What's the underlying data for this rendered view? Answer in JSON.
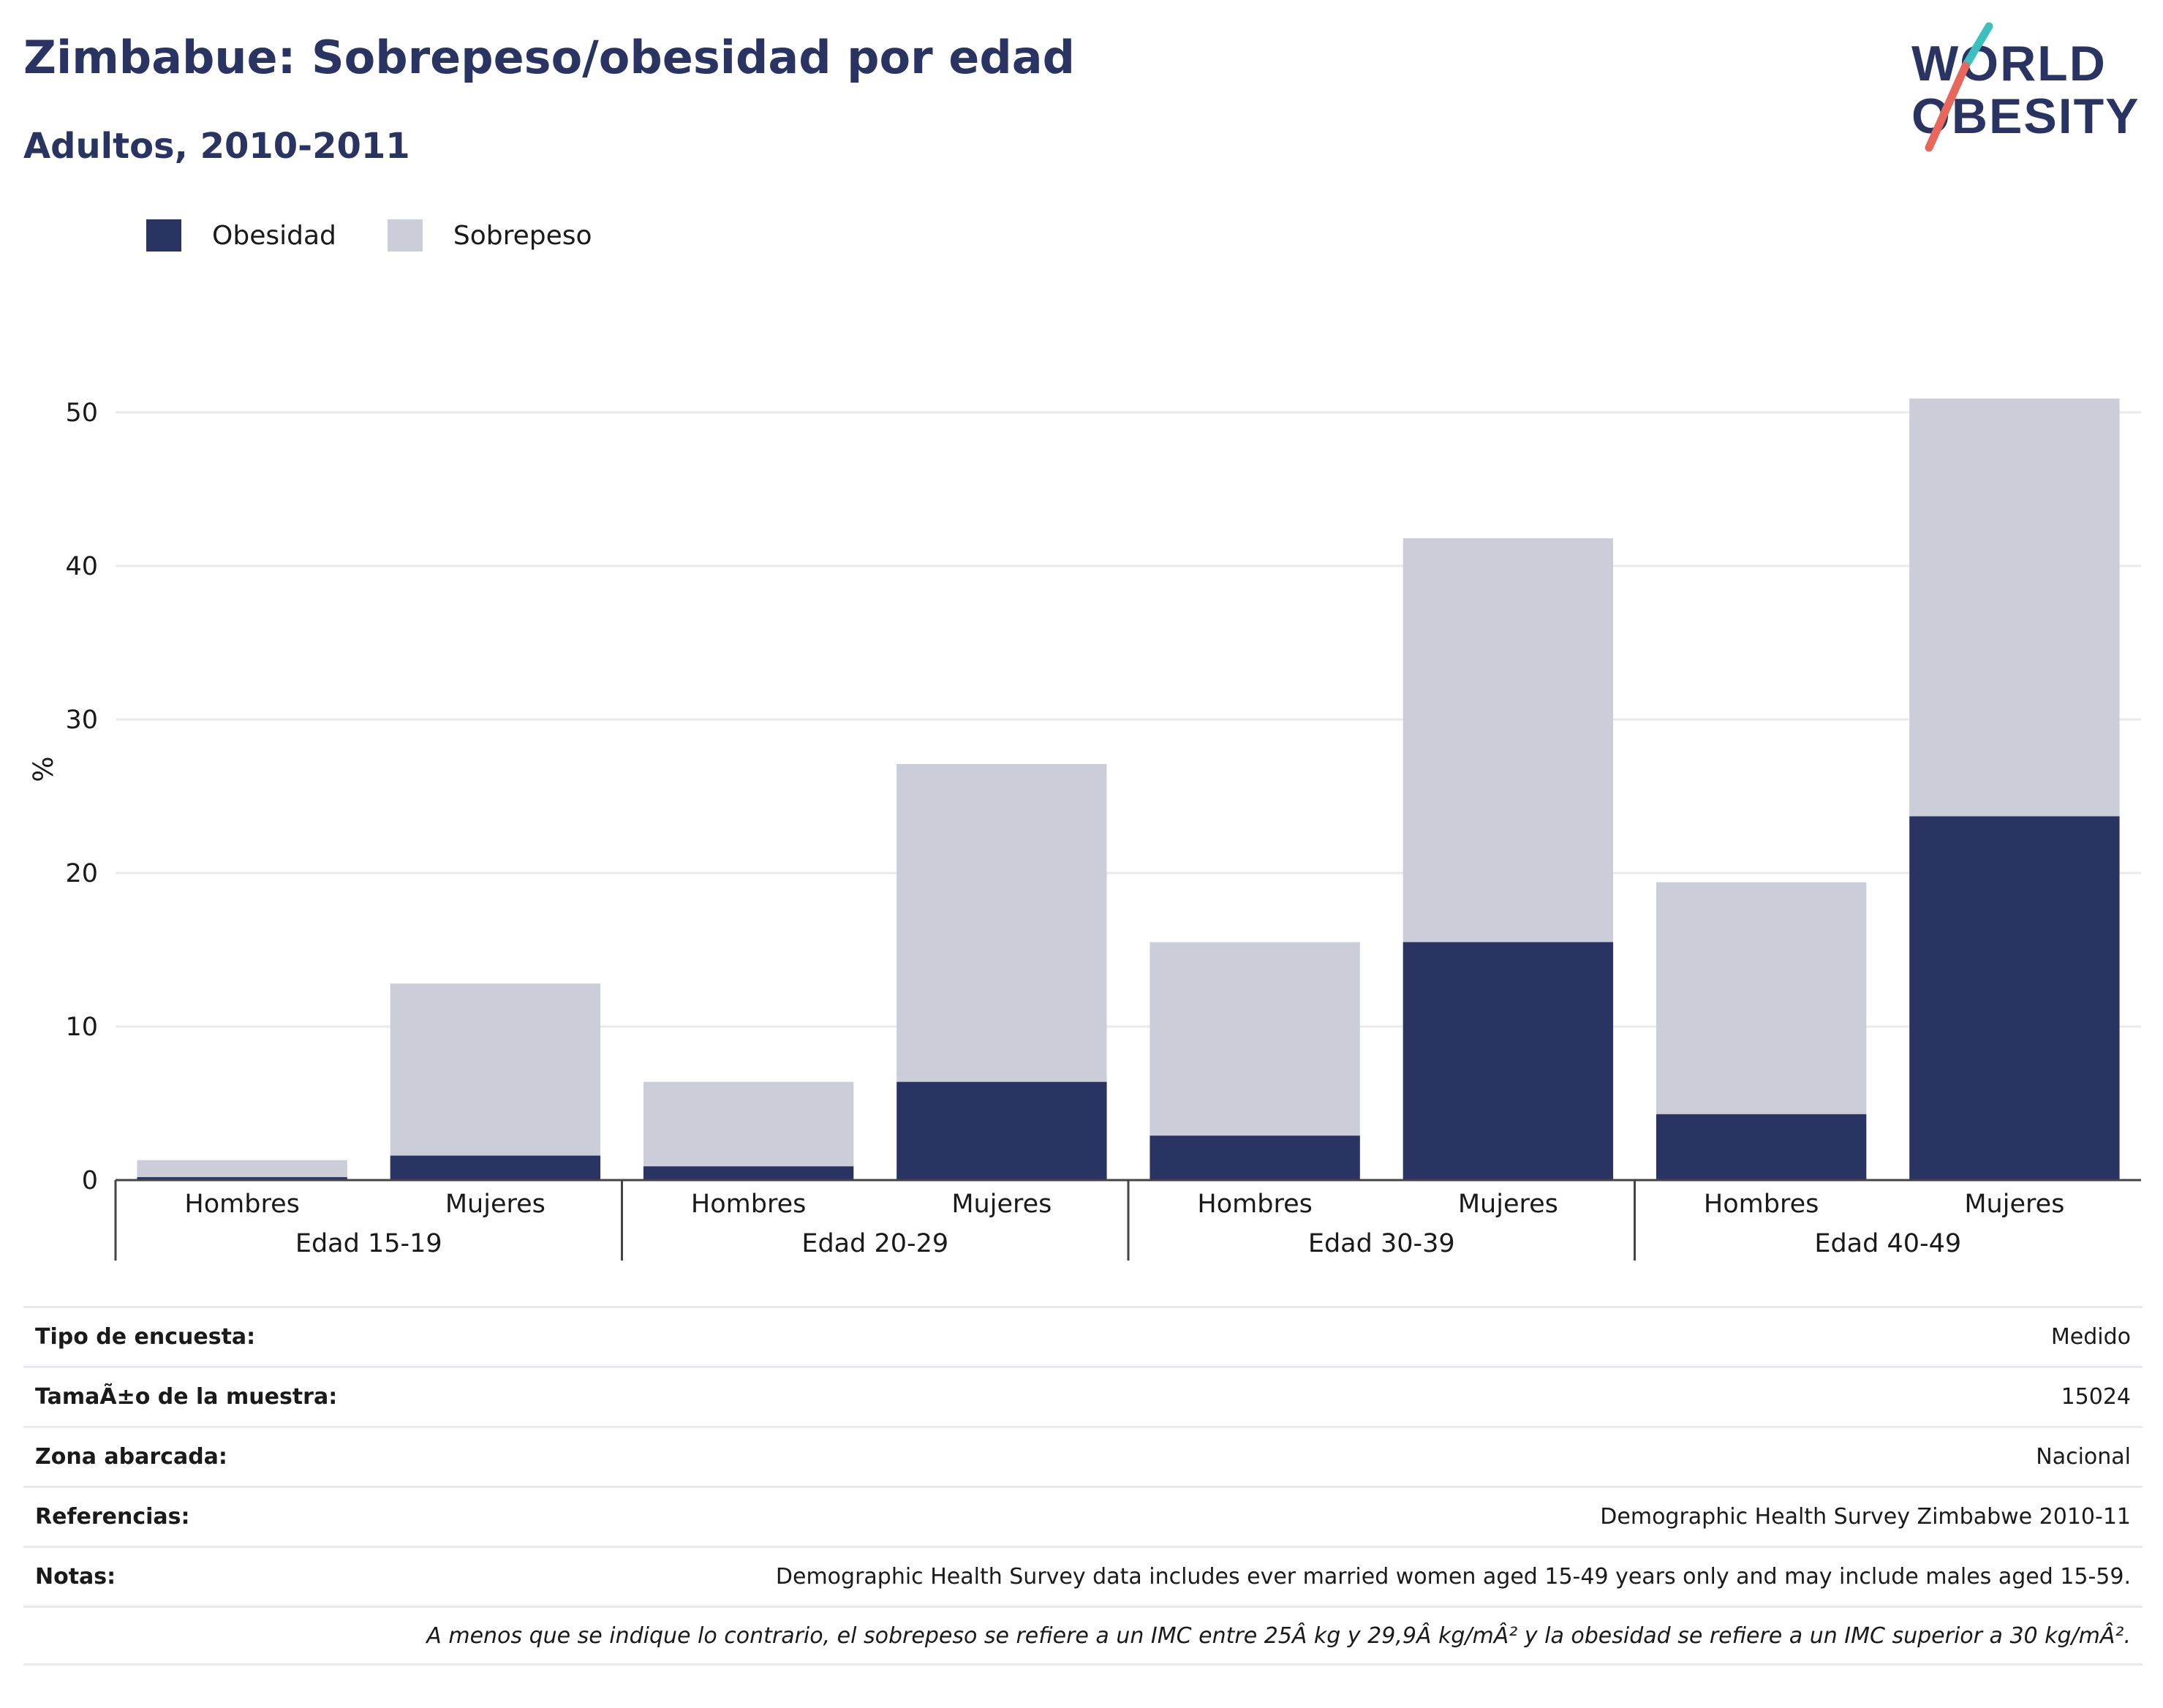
{
  "header": {
    "title": "Zimbabue: Sobrepeso/obesidad por edad",
    "subtitle": "Adultos, 2010-2011"
  },
  "logo": {
    "line1": "WORLD",
    "line2": "OBESITY"
  },
  "legend": {
    "obesity_label": "Obesidad",
    "overweight_label": "Sobrepeso"
  },
  "colors": {
    "obesity": "#293462",
    "overweight": "#cbcdd9",
    "grid": "#e9eaef",
    "axis": "#444444"
  },
  "chart_data": {
    "type": "bar",
    "stacked": true,
    "ylabel": "%",
    "ylim": [
      0,
      52
    ],
    "yticks": [
      0,
      10,
      20,
      30,
      40,
      50
    ],
    "groups": [
      "Edad 15-19",
      "Edad 20-29",
      "Edad 30-39",
      "Edad 40-49"
    ],
    "categories": [
      "Hombres",
      "Mujeres",
      "Hombres",
      "Mujeres",
      "Hombres",
      "Mujeres",
      "Hombres",
      "Mujeres"
    ],
    "series": [
      {
        "name": "Obesidad",
        "values": [
          0.2,
          1.6,
          0.9,
          6.4,
          2.9,
          15.5,
          4.3,
          23.7
        ]
      },
      {
        "name": "Sobrepeso",
        "values": [
          1.1,
          11.2,
          5.5,
          20.7,
          12.6,
          26.3,
          15.1,
          27.2
        ]
      }
    ],
    "grid": true,
    "legend_position": "top-left"
  },
  "meta": {
    "rows": [
      {
        "key": "Tipo de encuesta:",
        "value": "Medido"
      },
      {
        "key": "TamaÃ±o de la muestra:",
        "value": "15024"
      },
      {
        "key": "Zona abarcada:",
        "value": "Nacional"
      },
      {
        "key": "Referencias:",
        "value": "Demographic Health Survey Zimbabwe 2010-11"
      },
      {
        "key": "Notas:",
        "value": "Demographic Health Survey data includes ever married women aged 15-49 years only and may include males aged 15-59."
      }
    ],
    "footnote": "A menos que se indique lo contrario, el sobrepeso se refiere a un IMC entre 25Â kg y 29,9Â kg/mÂ² y la obesidad se refiere a un IMC superior a 30 kg/mÂ²."
  }
}
